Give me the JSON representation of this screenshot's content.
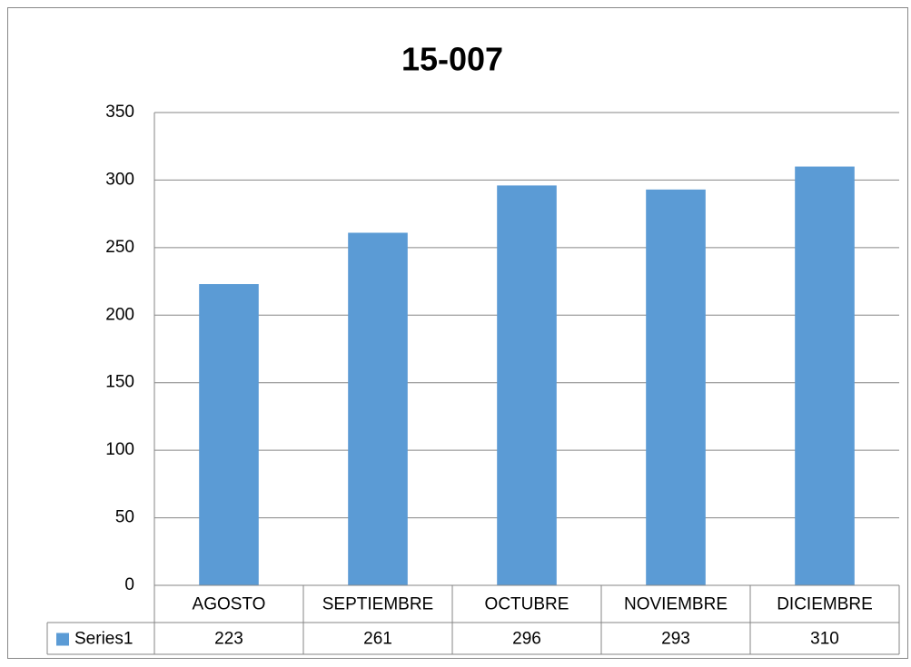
{
  "chart_data": {
    "type": "bar",
    "title": "15-007",
    "categories": [
      "AGOSTO",
      "SEPTIEMBRE",
      "OCTUBRE",
      "NOVIEMBRE",
      "DICIEMBRE"
    ],
    "series": [
      {
        "name": "Series1",
        "color": "#5b9bd5",
        "values": [
          223,
          261,
          296,
          293,
          310
        ]
      }
    ],
    "ylim": [
      0,
      350
    ],
    "yticks": [
      0,
      50,
      100,
      150,
      200,
      250,
      300,
      350
    ],
    "grid": true,
    "data_table": true
  }
}
